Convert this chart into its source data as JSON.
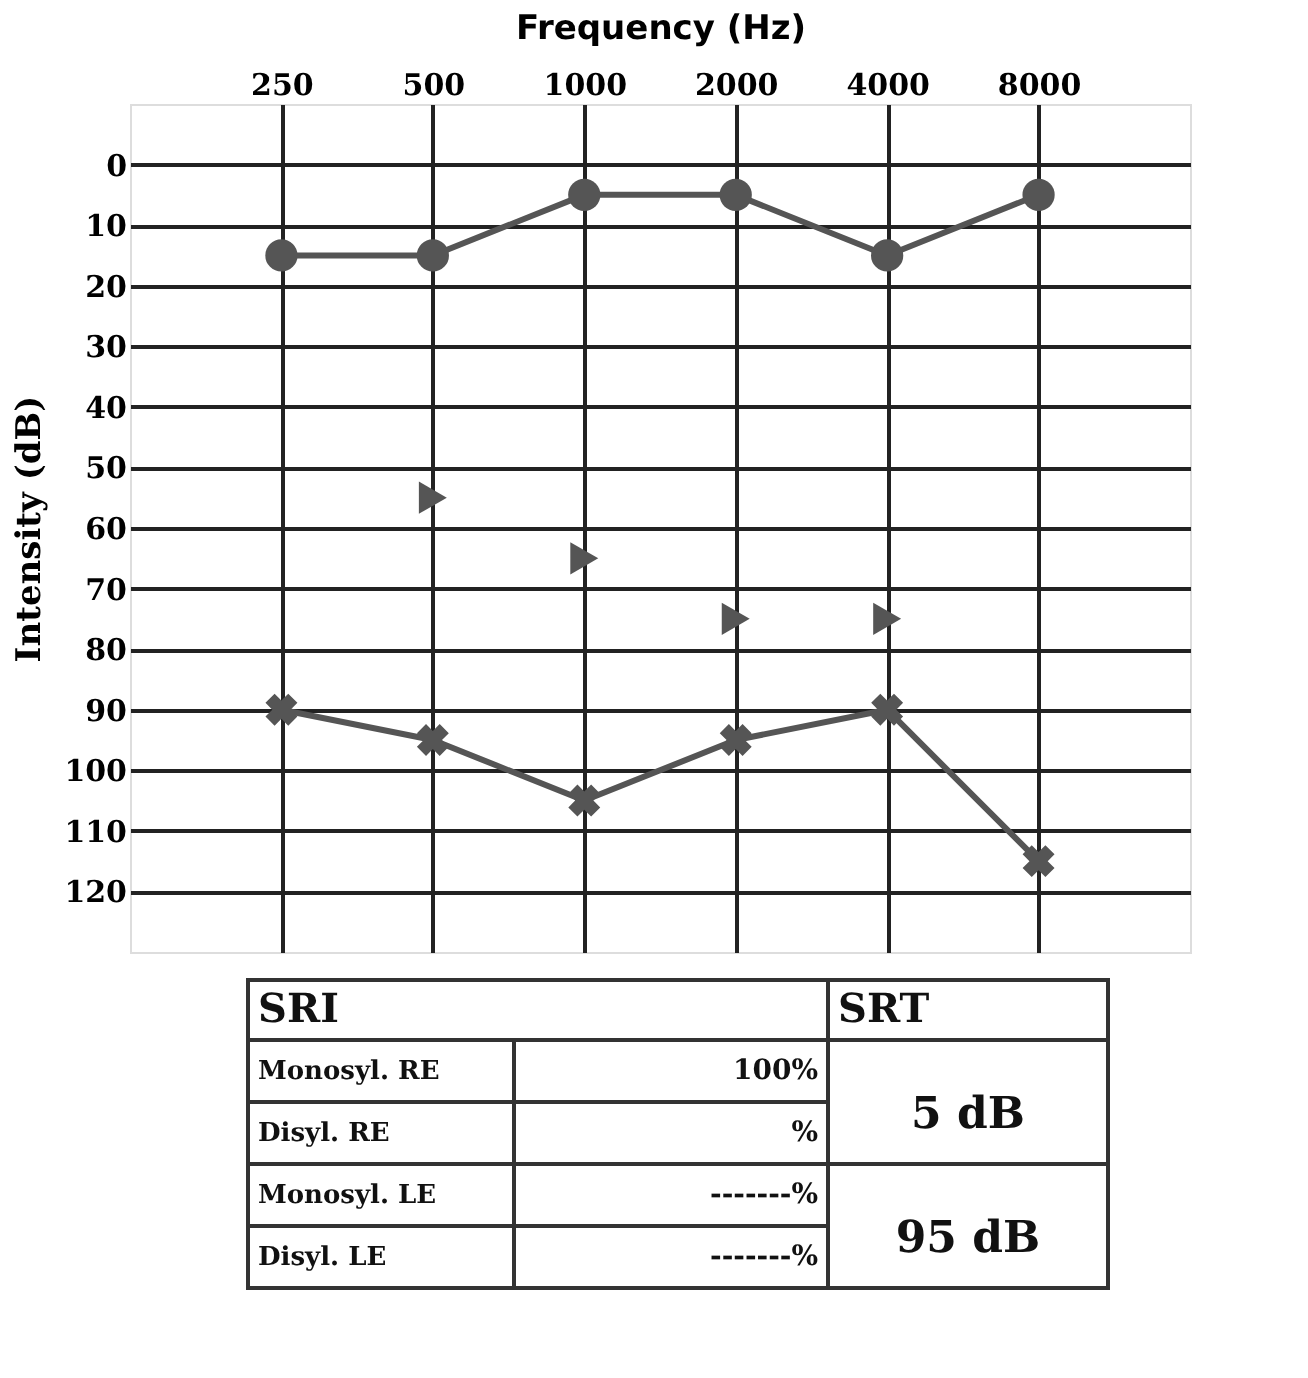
{
  "chart_data": {
    "type": "line",
    "xlabel": "Frequency (Hz)",
    "ylabel": "Intensity (dB)",
    "categories": [
      "250",
      "500",
      "1000",
      "2000",
      "4000",
      "8000"
    ],
    "series": [
      {
        "color": "#555555",
        "marker": "circle",
        "line_style": "solid",
        "values": [
          15,
          15,
          5,
          5,
          15,
          5
        ]
      },
      {
        "color": "#555555",
        "marker": "cross",
        "line_style": "solid",
        "values": [
          90,
          95,
          105,
          95,
          90,
          115
        ]
      },
      {
        "type": "scatter",
        "color": "#555555",
        "marker": "triangle",
        "values": [
          null,
          55,
          65,
          75,
          75,
          null
        ]
      }
    ],
    "ylim": [
      130,
      -10
    ],
    "yticks": [
      0,
      10,
      20,
      30,
      40,
      50,
      60,
      70,
      80,
      90,
      100,
      110,
      120
    ],
    "grid": true,
    "annotations": [
      "SRI",
      "SRT",
      "Monosyl. RE",
      "100%",
      "Disyl. RE",
      "%",
      "5 dB",
      "Monosyl. LE",
      "-------%",
      "Disyl. LE",
      "-------%",
      "95 dB"
    ]
  }
}
